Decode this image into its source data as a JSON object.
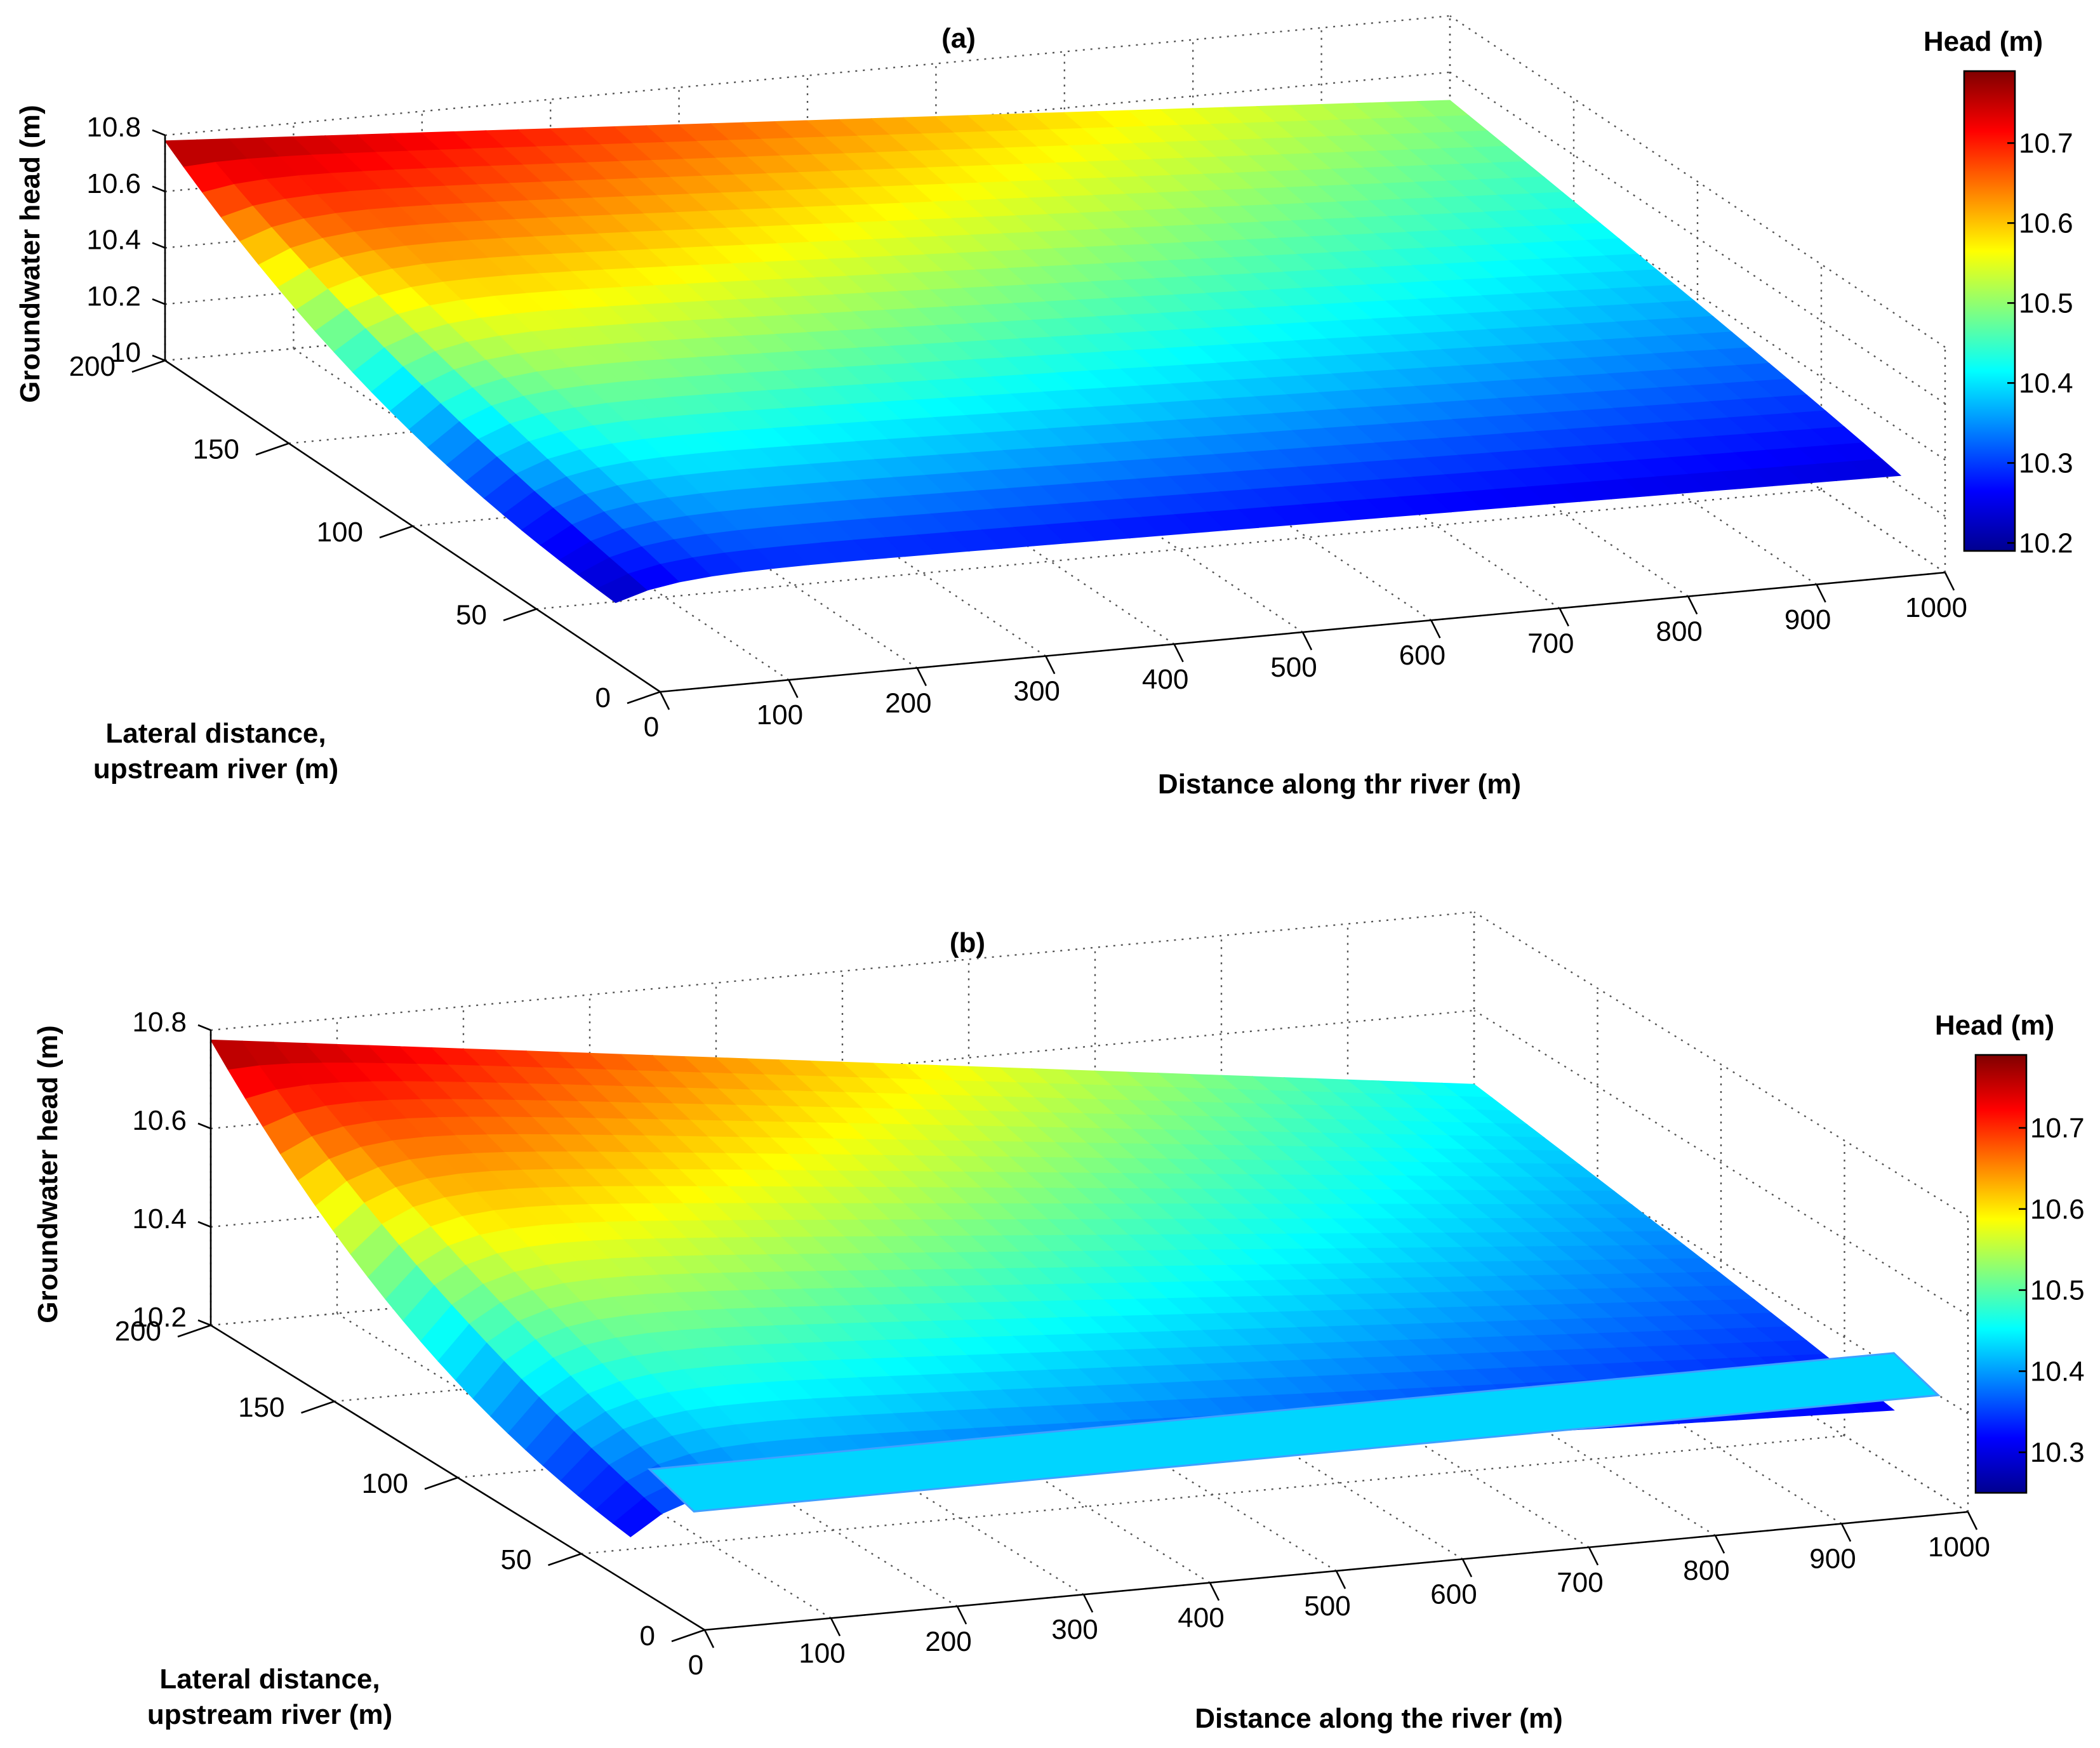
{
  "chart_data": [
    {
      "type": "surface",
      "panel": "(a)",
      "title": "(a)",
      "xlabel": "Distance along thr river (m)",
      "ylabel": "Lateral distance, upstream river (m)",
      "ylabel_lines": [
        "Lateral distance,",
        "upstream river (m)"
      ],
      "zlabel": "Groundwater head (m)",
      "x_ticks": [
        0,
        100,
        200,
        300,
        400,
        500,
        600,
        700,
        800,
        900,
        1000
      ],
      "y_ticks": [
        0,
        50,
        100,
        150,
        200
      ],
      "z_ticks": [
        10,
        10.2,
        10.4,
        10.6,
        10.8
      ],
      "z_tick_labels": [
        "10",
        "10.2",
        "10.4",
        "10.6",
        "10.8"
      ],
      "xlim": [
        0,
        1000
      ],
      "ylim": [
        0,
        200
      ],
      "zlim": [
        10,
        10.8
      ],
      "colorbar": {
        "label": "Head (m)",
        "ticks": [
          10.2,
          10.3,
          10.4,
          10.5,
          10.6,
          10.7
        ],
        "tick_labels": [
          "10.2",
          "10.3",
          "10.4",
          "10.5",
          "10.6",
          "10.7"
        ],
        "range": [
          10.19,
          10.79
        ],
        "colormap": [
          "#00008F",
          "#0000FF",
          "#0080FF",
          "#00FFFF",
          "#80FF80",
          "#FFFF00",
          "#FF8000",
          "#FF0000",
          "#800000"
        ]
      },
      "surface_corners": {
        "x0_y200_head": 10.78,
        "x1000_y200_head": 10.5,
        "x0_y0_head": 10.22,
        "x1000_y0_head": 10.2
      },
      "near_river_drop_head": 10.2,
      "near_river_band_head": null
    },
    {
      "type": "surface",
      "panel": "(b)",
      "title": "(b)",
      "xlabel": "Distance along the river (m)",
      "ylabel": "Lateral distance, upstream river (m)",
      "ylabel_lines": [
        "Lateral distance,",
        "upstream river (m)"
      ],
      "zlabel": "Groundwater head (m)",
      "x_ticks": [
        0,
        100,
        200,
        300,
        400,
        500,
        600,
        700,
        800,
        900,
        1000
      ],
      "y_ticks": [
        0,
        50,
        100,
        150,
        200
      ],
      "z_ticks": [
        10.2,
        10.4,
        10.6,
        10.8
      ],
      "z_tick_labels": [
        "10.2",
        "10.4",
        "10.6",
        "10.8"
      ],
      "xlim": [
        0,
        1000
      ],
      "ylim": [
        0,
        200
      ],
      "zlim": [
        10.2,
        10.8
      ],
      "colorbar": {
        "label": "Head (m)",
        "ticks": [
          10.3,
          10.4,
          10.5,
          10.6,
          10.7
        ],
        "tick_labels": [
          "10.3",
          "10.4",
          "10.5",
          "10.6",
          "10.7"
        ],
        "range": [
          10.25,
          10.79
        ],
        "colormap": [
          "#00008F",
          "#0000FF",
          "#0080FF",
          "#00FFFF",
          "#80FF80",
          "#FFFF00",
          "#FF8000",
          "#FF0000",
          "#800000"
        ]
      },
      "surface_corners": {
        "x0_y200_head": 10.78,
        "x1000_y200_head": 10.45,
        "x0_y0_head": 10.3,
        "x1000_y0_head": 10.28
      },
      "near_river_drop_head": 10.28,
      "near_river_band_head": 10.43
    }
  ]
}
